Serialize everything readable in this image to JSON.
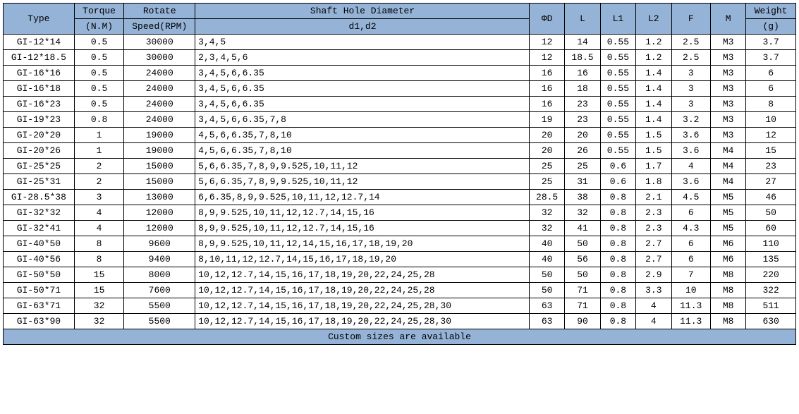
{
  "table": {
    "header": {
      "type": "Type",
      "torque_top": "Torque",
      "torque_bot": "(N.M)",
      "speed_top": "Rotate",
      "speed_bot": "Speed(RPM)",
      "shaft_top": "Shaft Hole Diameter",
      "shaft_bot": "d1,d2",
      "phid": "ΦD",
      "l": "L",
      "l1": "L1",
      "l2": "L2",
      "f": "F",
      "m": "M",
      "weight_top": "Weight",
      "weight_bot": "(g)"
    },
    "rows": [
      {
        "type": "GI-12*14",
        "torque": "0.5",
        "speed": "30000",
        "d1d2": "3,4,5",
        "phid": "12",
        "l": "14",
        "l1": "0.55",
        "l2": "1.2",
        "f": "2.5",
        "m": "M3",
        "weight": "3.7"
      },
      {
        "type": "GI-12*18.5",
        "torque": "0.5",
        "speed": "30000",
        "d1d2": "2,3,4,5,6",
        "phid": "12",
        "l": "18.5",
        "l1": "0.55",
        "l2": "1.2",
        "f": "2.5",
        "m": "M3",
        "weight": "3.7"
      },
      {
        "type": "GI-16*16",
        "torque": "0.5",
        "speed": "24000",
        "d1d2": "3,4,5,6,6.35",
        "phid": "16",
        "l": "16",
        "l1": "0.55",
        "l2": "1.4",
        "f": "3",
        "m": "M3",
        "weight": "6"
      },
      {
        "type": "GI-16*18",
        "torque": "0.5",
        "speed": "24000",
        "d1d2": "3,4,5,6,6.35",
        "phid": "16",
        "l": "18",
        "l1": "0.55",
        "l2": "1.4",
        "f": "3",
        "m": "M3",
        "weight": "6"
      },
      {
        "type": "GI-16*23",
        "torque": "0.5",
        "speed": "24000",
        "d1d2": "3,4,5,6,6.35",
        "phid": "16",
        "l": "23",
        "l1": "0.55",
        "l2": "1.4",
        "f": "3",
        "m": "M3",
        "weight": "8"
      },
      {
        "type": "GI-19*23",
        "torque": "0.8",
        "speed": "24000",
        "d1d2": "3,4,5,6,6.35,7,8",
        "phid": "19",
        "l": "23",
        "l1": "0.55",
        "l2": "1.4",
        "f": "3.2",
        "m": "M3",
        "weight": "10"
      },
      {
        "type": "GI-20*20",
        "torque": "1",
        "speed": "19000",
        "d1d2": "4,5,6,6.35,7,8,10",
        "phid": "20",
        "l": "20",
        "l1": "0.55",
        "l2": "1.5",
        "f": "3.6",
        "m": "M3",
        "weight": "12"
      },
      {
        "type": "GI-20*26",
        "torque": "1",
        "speed": "19000",
        "d1d2": "4,5,6,6.35,7,8,10",
        "phid": "20",
        "l": "26",
        "l1": "0.55",
        "l2": "1.5",
        "f": "3.6",
        "m": "M4",
        "weight": "15"
      },
      {
        "type": "GI-25*25",
        "torque": "2",
        "speed": "15000",
        "d1d2": "5,6,6.35,7,8,9,9.525,10,11,12",
        "phid": "25",
        "l": "25",
        "l1": "0.6",
        "l2": "1.7",
        "f": "4",
        "m": "M4",
        "weight": "23"
      },
      {
        "type": "GI-25*31",
        "torque": "2",
        "speed": "15000",
        "d1d2": "5,6,6.35,7,8,9,9.525,10,11,12",
        "phid": "25",
        "l": "31",
        "l1": "0.6",
        "l2": "1.8",
        "f": "3.6",
        "m": "M4",
        "weight": "27"
      },
      {
        "type": "GI-28.5*38",
        "torque": "3",
        "speed": "13000",
        "d1d2": "6,6.35,8,9,9.525,10,11,12,12.7,14",
        "phid": "28.5",
        "l": "38",
        "l1": "0.8",
        "l2": "2.1",
        "f": "4.5",
        "m": "M5",
        "weight": "46"
      },
      {
        "type": "GI-32*32",
        "torque": "4",
        "speed": "12000",
        "d1d2": "8,9,9.525,10,11,12,12.7,14,15,16",
        "phid": "32",
        "l": "32",
        "l1": "0.8",
        "l2": "2.3",
        "f": "6",
        "m": "M5",
        "weight": "50"
      },
      {
        "type": "GI-32*41",
        "torque": "4",
        "speed": "12000",
        "d1d2": "8,9,9.525,10,11,12,12.7,14,15,16",
        "phid": "32",
        "l": "41",
        "l1": "0.8",
        "l2": "2.3",
        "f": "4.3",
        "m": "M5",
        "weight": "60"
      },
      {
        "type": "GI-40*50",
        "torque": "8",
        "speed": "9600",
        "d1d2": "8,9,9.525,10,11,12,14,15,16,17,18,19,20",
        "phid": "40",
        "l": "50",
        "l1": "0.8",
        "l2": "2.7",
        "f": "6",
        "m": "M6",
        "weight": "110"
      },
      {
        "type": "GI-40*56",
        "torque": "8",
        "speed": "9400",
        "d1d2": "8,10,11,12,12.7,14,15,16,17,18,19,20",
        "phid": "40",
        "l": "56",
        "l1": "0.8",
        "l2": "2.7",
        "f": "6",
        "m": "M6",
        "weight": "135"
      },
      {
        "type": "GI-50*50",
        "torque": "15",
        "speed": "8000",
        "d1d2": "10,12,12.7,14,15,16,17,18,19,20,22,24,25,28",
        "phid": "50",
        "l": "50",
        "l1": "0.8",
        "l2": "2.9",
        "f": "7",
        "m": "M8",
        "weight": "220"
      },
      {
        "type": "GI-50*71",
        "torque": "15",
        "speed": "7600",
        "d1d2": "10,12,12.7,14,15,16,17,18,19,20,22,24,25,28",
        "phid": "50",
        "l": "71",
        "l1": "0.8",
        "l2": "3.3",
        "f": "10",
        "m": "M8",
        "weight": "322"
      },
      {
        "type": "GI-63*71",
        "torque": "32",
        "speed": "5500",
        "d1d2": "10,12,12.7,14,15,16,17,18,19,20,22,24,25,28,30",
        "phid": "63",
        "l": "71",
        "l1": "0.8",
        "l2": "4",
        "f": "11.3",
        "m": "M8",
        "weight": "511"
      },
      {
        "type": "GI-63*90",
        "torque": "32",
        "speed": "5500",
        "d1d2": "10,12,12.7,14,15,16,17,18,19,20,22,24,25,28,30",
        "phid": "63",
        "l": "90",
        "l1": "0.8",
        "l2": "4",
        "f": "11.3",
        "m": "M8",
        "weight": "630"
      }
    ],
    "footer": "Custom sizes are available",
    "colors": {
      "header_bg": "#95b3d7",
      "border": "#000000",
      "background": "#ffffff",
      "text": "#000000"
    },
    "font": {
      "family": "Courier New, monospace",
      "size_pt": 10
    }
  }
}
